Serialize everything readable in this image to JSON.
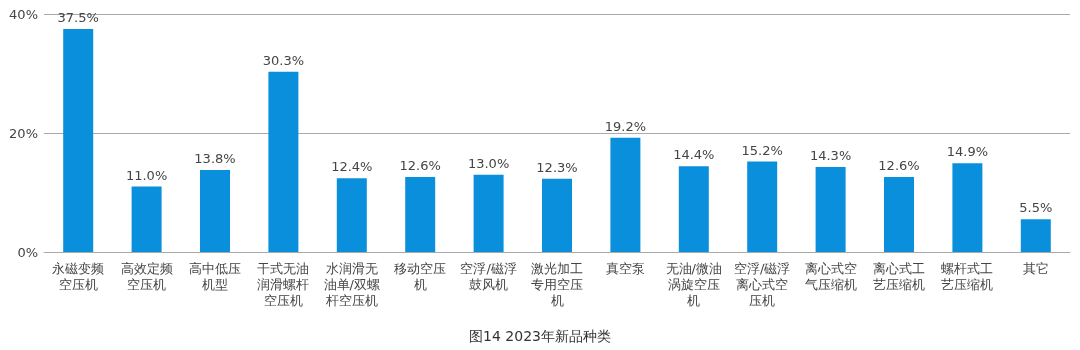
{
  "chart_data": {
    "type": "bar",
    "title": "图14 2023年新品种类",
    "categories": [
      "永磁变频空压机",
      "高效定频空压机",
      "高中低压机型",
      "干式无油润滑螺杆空压机",
      "水润滑无油单/双螺杆空压机",
      "移动空压机",
      "空浮/磁浮鼓风机",
      "激光加工专用空压机",
      "真空泵",
      "无油/微油涡旋空压机",
      "空浮/磁浮离心式空压机",
      "离心式空气压缩机",
      "离心式工艺压缩机",
      "螺杆式工艺压缩机",
      "其它"
    ],
    "values": [
      37.5,
      11.0,
      13.8,
      30.3,
      12.4,
      12.6,
      13.0,
      12.3,
      19.2,
      14.4,
      15.2,
      14.3,
      12.6,
      14.9,
      5.5
    ],
    "value_labels": [
      "37.5%",
      "11.0%",
      "13.8%",
      "30.3%",
      "12.4%",
      "12.6%",
      "13.0%",
      "12.3%",
      "19.2%",
      "14.4%",
      "15.2%",
      "14.3%",
      "12.6%",
      "14.9%",
      "5.5%"
    ],
    "color": "#0a8fdc",
    "ylim": [
      0,
      40
    ],
    "yticks": [
      {
        "value": 0,
        "label": "0%"
      },
      {
        "value": 20,
        "label": "20%"
      },
      {
        "value": 40,
        "label": "40%"
      }
    ],
    "grid": "y"
  }
}
